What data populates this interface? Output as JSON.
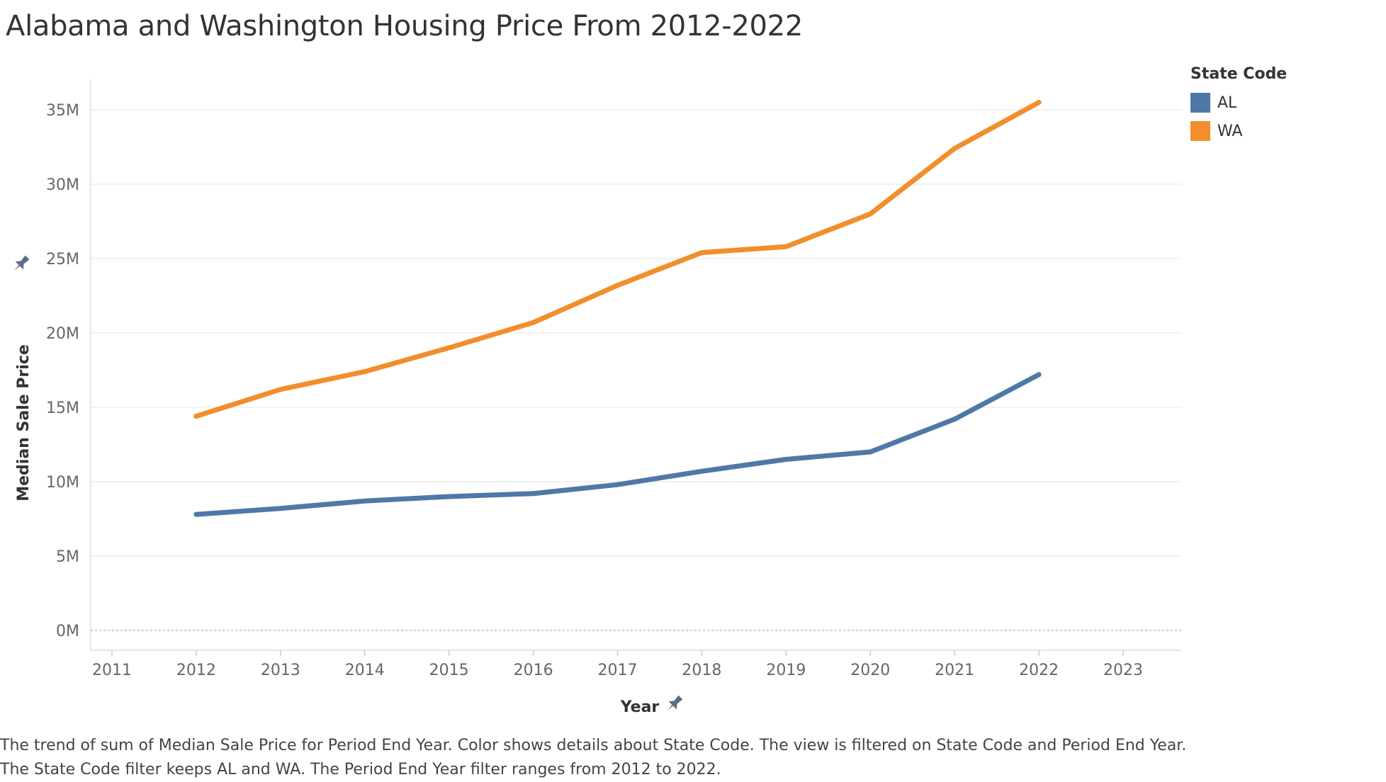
{
  "chart_data": {
    "type": "line",
    "title": "Alabama and Washington Housing Price From 2012-2022",
    "xlabel": "Year",
    "ylabel": "Median Sale Price",
    "x": [
      2012,
      2013,
      2014,
      2015,
      2016,
      2017,
      2018,
      2019,
      2020,
      2021,
      2022
    ],
    "x_ticks": [
      "2011",
      "2012",
      "2013",
      "2014",
      "2015",
      "2016",
      "2017",
      "2018",
      "2019",
      "2020",
      "2021",
      "2022",
      "2023"
    ],
    "xlim": [
      2011,
      2023
    ],
    "y_ticks": [
      "0M",
      "5M",
      "10M",
      "15M",
      "20M",
      "25M",
      "30M",
      "35M"
    ],
    "ylim": [
      0,
      35
    ],
    "y_unit": "M",
    "grid": true,
    "legend_position": "top-right",
    "legend_title": "State Code",
    "series": [
      {
        "name": "AL",
        "color": "#4e79a7",
        "values": [
          7.8,
          8.2,
          8.7,
          9.0,
          9.2,
          9.8,
          10.7,
          11.5,
          12.0,
          14.2,
          17.2
        ]
      },
      {
        "name": "WA",
        "color": "#f28e2b",
        "values": [
          14.4,
          16.2,
          17.4,
          19.0,
          20.7,
          23.2,
          25.4,
          25.8,
          28.0,
          32.4,
          35.5
        ]
      }
    ]
  },
  "caption": "The trend of sum of Median Sale Price for Period End Year.  Color shows details about State Code. The view is filtered on State Code and Period End Year. The State Code filter keeps AL and WA. The Period End Year filter ranges from 2012 to 2022.",
  "icons": {
    "y_axis_pin": "pin-icon",
    "x_axis_pin": "pin-icon"
  }
}
